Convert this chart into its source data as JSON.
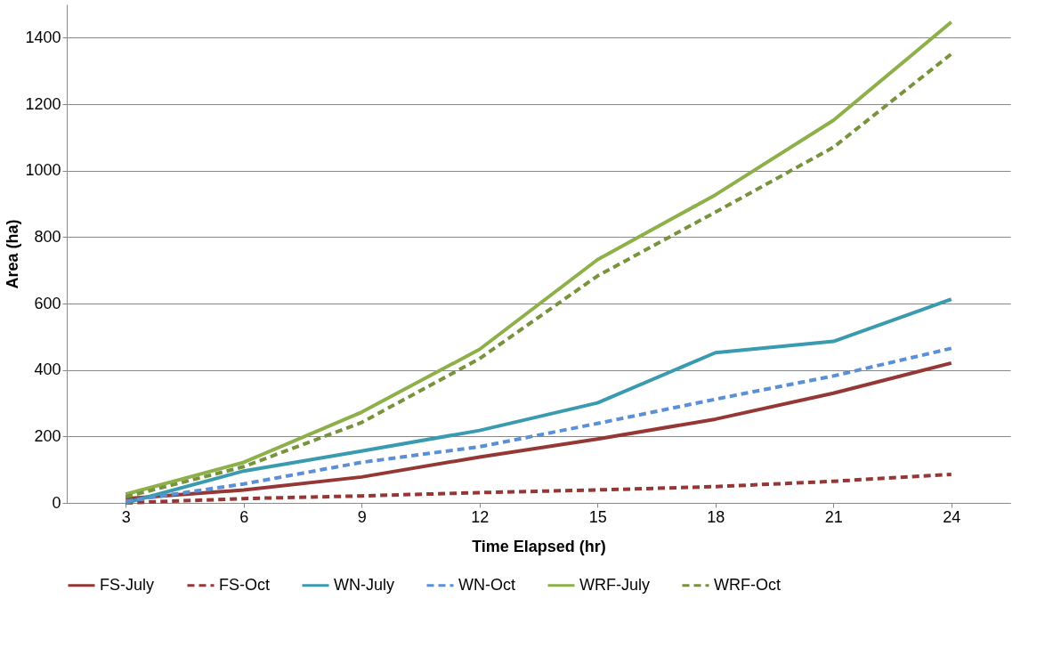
{
  "chart_data": {
    "type": "line",
    "xlabel": "Time Elapsed (hr)",
    "ylabel": "Area (ha)",
    "categories": [
      "3",
      "6",
      "9",
      "12",
      "15",
      "18",
      "21",
      "24"
    ],
    "ylim": [
      0,
      1500
    ],
    "yticks": [
      0,
      200,
      400,
      600,
      800,
      1000,
      1200,
      1400
    ],
    "grid": "y",
    "legend": "bottom",
    "marker": "none",
    "series": [
      {
        "name": "FS-July",
        "color": "#953735",
        "line_style": "solid",
        "values": [
          13,
          39,
          78,
          138,
          192,
          252,
          330,
          421
        ]
      },
      {
        "name": "FS-Oct",
        "color": "#953735",
        "line_style": "dashed",
        "values": [
          0,
          13,
          21,
          31,
          39,
          49,
          65,
          86
        ]
      },
      {
        "name": "WN-July",
        "color": "#3a9bb0",
        "line_style": "solid",
        "values": [
          0,
          96,
          156,
          218,
          301,
          452,
          486,
          613
        ]
      },
      {
        "name": "WN-Oct",
        "color": "#5b8fd6",
        "line_style": "dashed",
        "values": [
          5,
          57,
          122,
          169,
          239,
          312,
          382,
          465
        ]
      },
      {
        "name": "WRF-July",
        "color": "#8db04a",
        "line_style": "solid",
        "values": [
          26,
          122,
          273,
          462,
          732,
          927,
          1151,
          1447
        ]
      },
      {
        "name": "WRF-Oct",
        "color": "#77933c",
        "line_style": "dashed",
        "values": [
          18,
          109,
          242,
          434,
          683,
          875,
          1070,
          1351
        ]
      }
    ]
  }
}
